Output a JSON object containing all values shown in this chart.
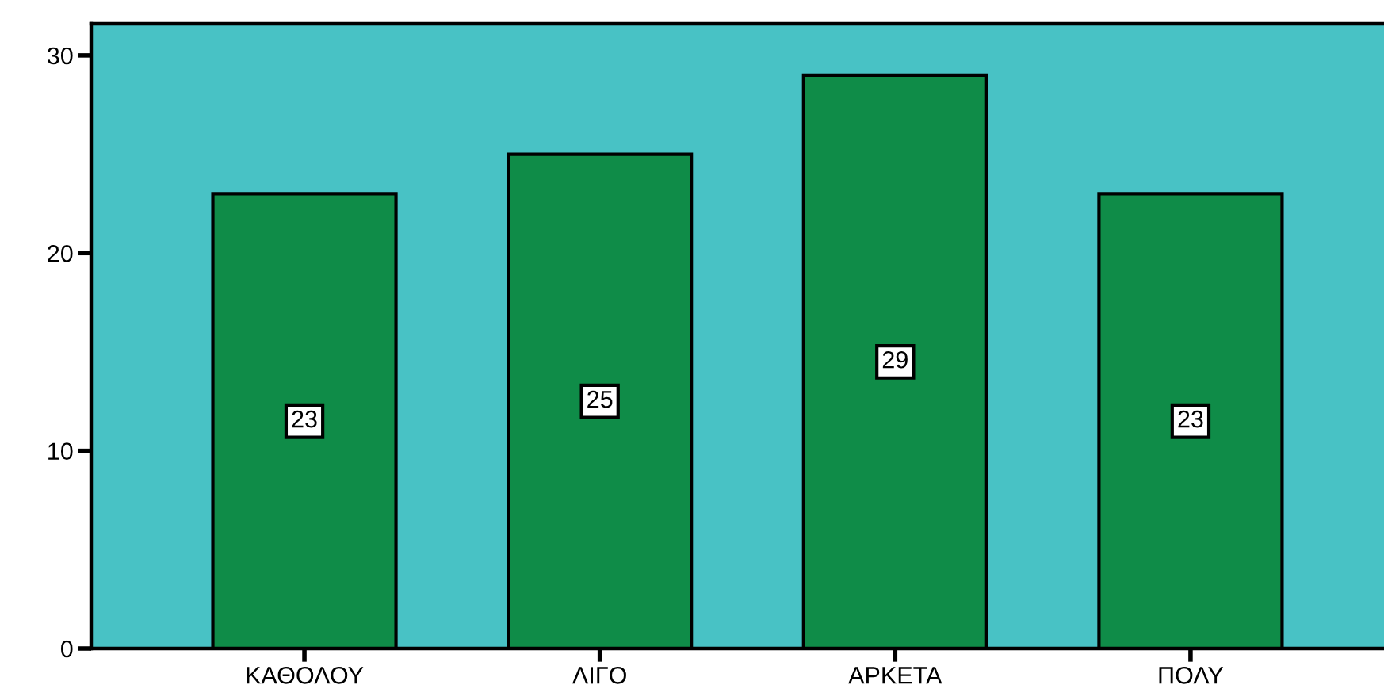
{
  "chart_data": {
    "type": "bar",
    "categories": [
      "ΚΑΘΟΛΟΥ",
      "ΛΙΓΟ",
      "ΑΡΚΕΤΑ",
      "ΠΟΛΥ"
    ],
    "values": [
      23,
      25,
      29,
      23
    ],
    "color": "#0f8c48",
    "ylim": [
      0,
      31.6
    ],
    "yticks": [
      0,
      10,
      20,
      30
    ],
    "data_labels": true,
    "grid": false
  }
}
